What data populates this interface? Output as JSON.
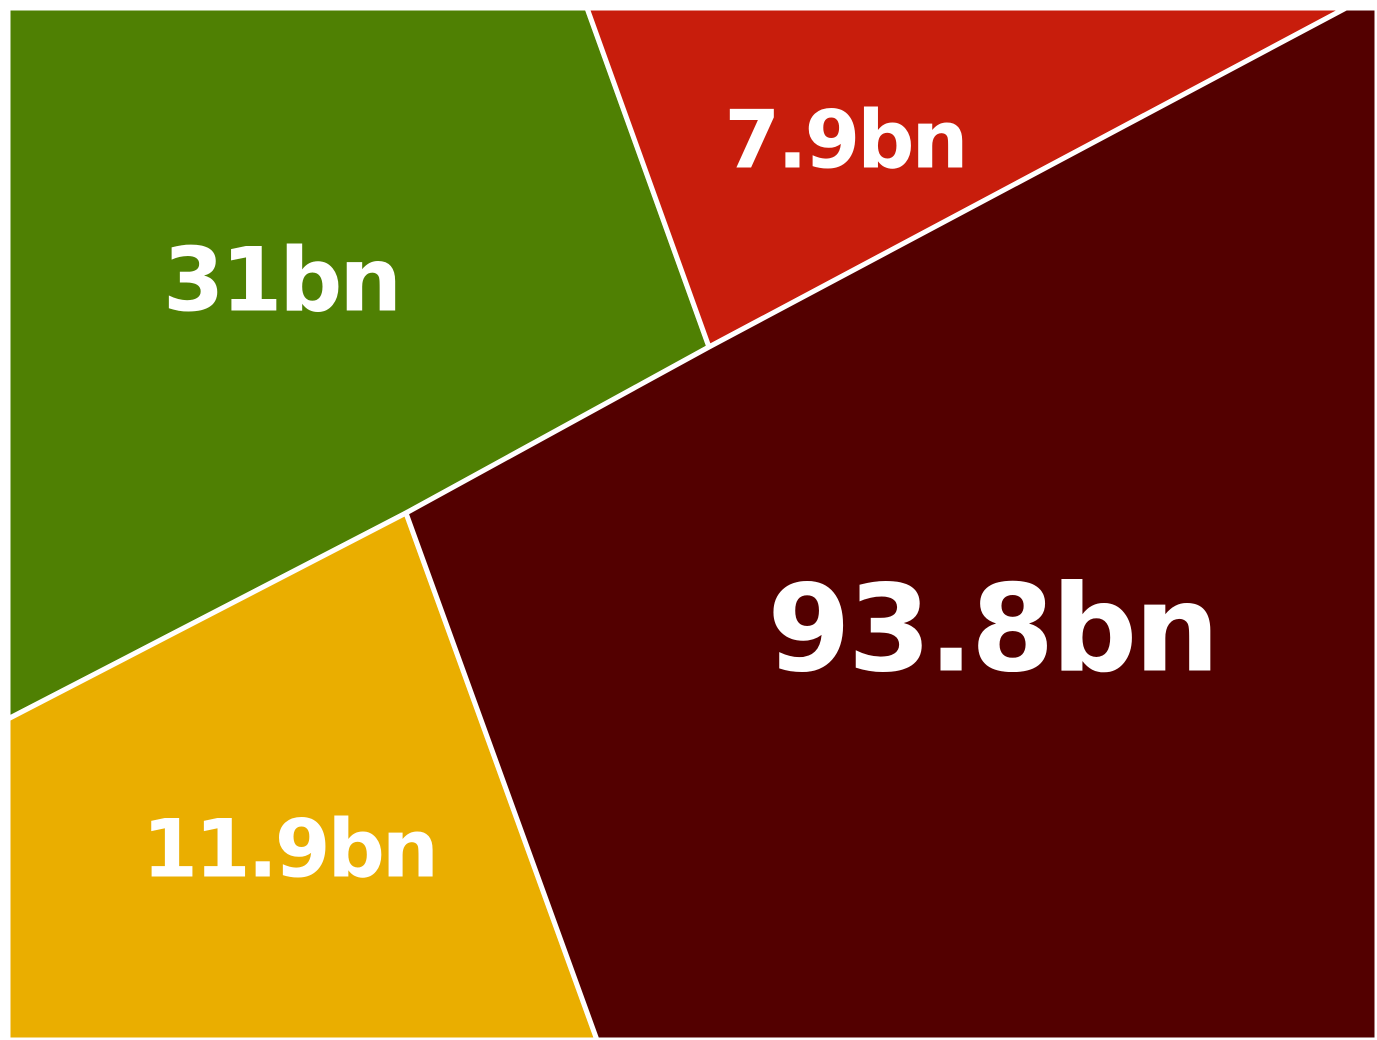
{
  "chart_data": {
    "type": "treemap",
    "title": "",
    "unit": "bn",
    "segments": [
      {
        "label": "31bn",
        "value": 31,
        "color": "#4F8003"
      },
      {
        "label": "7.9bn",
        "value": 7.9,
        "color": "#C81D0C"
      },
      {
        "label": "11.9bn",
        "value": 11.9,
        "color": "#EAAE00"
      },
      {
        "label": "93.8bn",
        "value": 93.8,
        "color": "#530000"
      }
    ]
  }
}
